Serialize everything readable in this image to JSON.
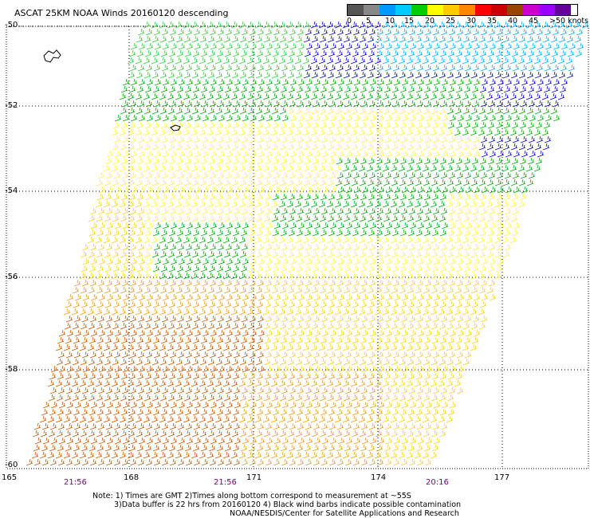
{
  "title": "ASCAT 25KM NOAA Winds 20160120 descending",
  "legend": {
    "colors": [
      "#555555",
      "#888888",
      "#0099ff",
      "#00ccff",
      "#00cc00",
      "#ffff00",
      "#ffcc00",
      "#ff8800",
      "#ff0000",
      "#cc0000",
      "#994400",
      "#cc00cc",
      "#9900ff",
      "#660099"
    ],
    "labels": [
      "0",
      "5",
      "10",
      "15",
      "20",
      "25",
      "30",
      "35",
      "40",
      "45",
      ">50 knots"
    ]
  },
  "lat_labels": [
    "-50",
    "-52",
    "-54",
    "-56",
    "-58",
    "-60"
  ],
  "lon_labels": [
    "165",
    "168",
    "171",
    "174",
    "177"
  ],
  "time_labels": [
    "21:56",
    "21:56",
    "20:16"
  ],
  "notes": {
    "line1": "Note: 1) Times are GMT 2)Times along bottom correspond to measurement at ~55S",
    "line2": "3)Data buffer is 22 hrs from 20160120 4) Black wind barbs indicate possible contamination",
    "line3": "NOAA/NESDIS/Center for Satellite Applications and Research"
  },
  "palette": {
    "blue": "#0000cc",
    "cyan": "#00aaff",
    "green": "#00aa00",
    "lightgreen": "#33cc33",
    "yellow": "#ffee44",
    "gold": "#ffcc22",
    "orange": "#ee9922",
    "darkorange": "#cc5500"
  }
}
